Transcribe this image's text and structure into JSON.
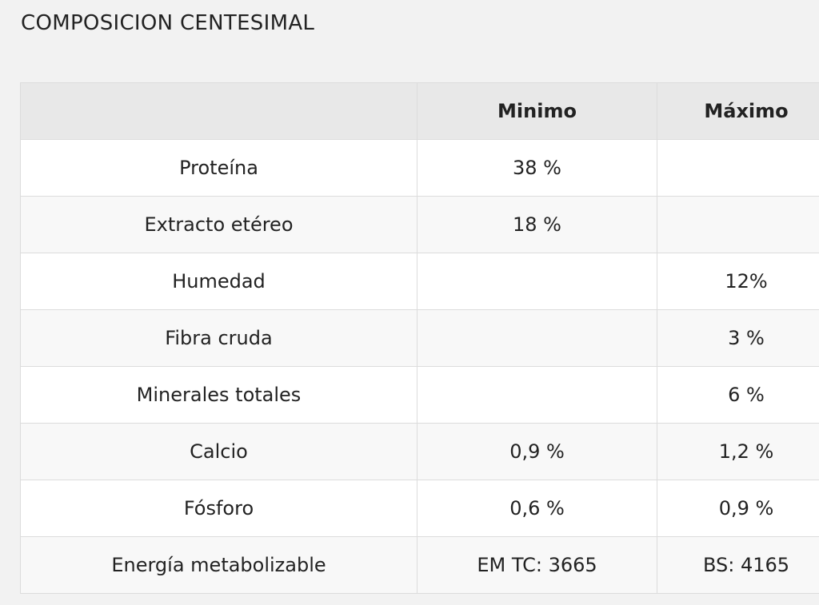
{
  "title": "COMPOSICION CENTESIMAL",
  "table": {
    "header": [
      null,
      "Minimo",
      "Máximo"
    ],
    "rows": [
      [
        "Proteína",
        "38 %",
        null
      ],
      [
        "Extracto etéreo",
        "18 %",
        null
      ],
      [
        "Humedad",
        null,
        "12%"
      ],
      [
        "Fibra cruda",
        null,
        "3 %"
      ],
      [
        "Minerales totales",
        null,
        "6 %"
      ],
      [
        "Calcio",
        "0,9 %",
        "1,2 %"
      ],
      [
        "Fósforo",
        "0,6 %",
        "0,9 %"
      ],
      [
        "Energía metabolizable",
        "EM TC: 3665",
        "BS: 4165"
      ]
    ]
  }
}
